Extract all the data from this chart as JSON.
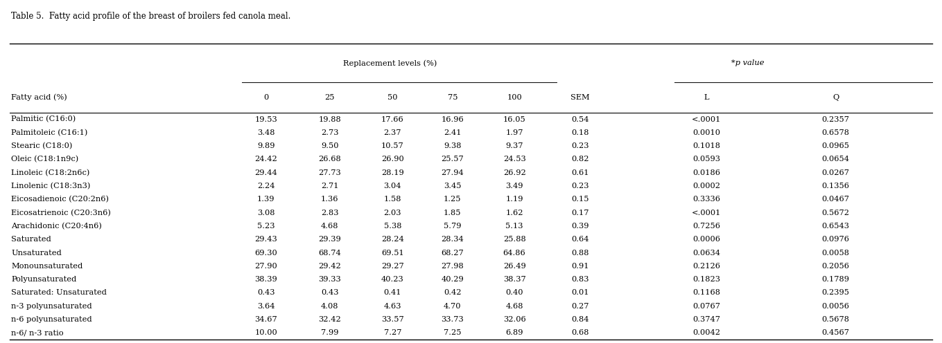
{
  "title": "Table 5.  Fatty acid profile of the breast of broilers fed canola meal.",
  "col_header_row1_repl": "Replacement levels (%)",
  "col_header_row1_pval": "*p value",
  "col_header_row1_sem": "SEM",
  "col_header_row1_fa": "Fatty acid (%)",
  "col_header_row2": [
    "0",
    "25",
    "50",
    "75",
    "100",
    "SEM",
    "L",
    "Q"
  ],
  "rows": [
    [
      "Palmitic (C16:0)",
      "19.53",
      "19.88",
      "17.66",
      "16.96",
      "16.05",
      "0.54",
      "<.0001",
      "0.2357"
    ],
    [
      "Palmitoleic (C16:1)",
      "3.48",
      "2.73",
      "2.37",
      "2.41",
      "1.97",
      "0.18",
      "0.0010",
      "0.6578"
    ],
    [
      "Stearic (C18:0)",
      "9.89",
      "9.50",
      "10.57",
      "9.38",
      "9.37",
      "0.23",
      "0.1018",
      "0.0965"
    ],
    [
      "Oleic (C18:1n9c)",
      "24.42",
      "26.68",
      "26.90",
      "25.57",
      "24.53",
      "0.82",
      "0.0593",
      "0.0654"
    ],
    [
      "Linoleic (C18:2n6c)",
      "29.44",
      "27.73",
      "28.19",
      "27.94",
      "26.92",
      "0.61",
      "0.0186",
      "0.0267"
    ],
    [
      "Linolenic (C18:3n3)",
      "2.24",
      "2.71",
      "3.04",
      "3.45",
      "3.49",
      "0.23",
      "0.0002",
      "0.1356"
    ],
    [
      "Eicosadienoic (C20:2n6)",
      "1.39",
      "1.36",
      "1.58",
      "1.25",
      "1.19",
      "0.15",
      "0.3336",
      "0.0467"
    ],
    [
      "Eicosatrienoic (C20:3n6)",
      "3.08",
      "2.83",
      "2.03",
      "1.85",
      "1.62",
      "0.17",
      "<.0001",
      "0.5672"
    ],
    [
      "Arachidonic (C20:4n6)",
      "5.23",
      "4.68",
      "5.38",
      "5.79",
      "5.13",
      "0.39",
      "0.7256",
      "0.6543"
    ],
    [
      "Saturated",
      "29.43",
      "29.39",
      "28.24",
      "28.34",
      "25.88",
      "0.64",
      "0.0006",
      "0.0976"
    ],
    [
      "Unsaturated",
      "69.30",
      "68.74",
      "69.51",
      "68.27",
      "64.86",
      "0.88",
      "0.0634",
      "0.0058"
    ],
    [
      "Monounsaturated",
      "27.90",
      "29.42",
      "29.27",
      "27.98",
      "26.49",
      "0.91",
      "0.2126",
      "0.2056"
    ],
    [
      "Polyunsaturated",
      "38.39",
      "39.33",
      "40.23",
      "40.29",
      "38.37",
      "0.83",
      "0.1823",
      "0.1789"
    ],
    [
      "Saturated: Unsaturated",
      "0.43",
      "0.43",
      "0.41",
      "0.42",
      "0.40",
      "0.01",
      "0.1168",
      "0.2395"
    ],
    [
      "n-3 polyunsaturated",
      "3.64",
      "4.08",
      "4.63",
      "4.70",
      "4.68",
      "0.27",
      "0.0767",
      "0.0056"
    ],
    [
      "n-6 polyunsaturated",
      "34.67",
      "32.42",
      "33.57",
      "33.73",
      "32.06",
      "0.84",
      "0.3747",
      "0.5678"
    ],
    [
      "n-6/ n-3 ratio",
      "10.00",
      "7.99",
      "7.27",
      "7.25",
      "6.89",
      "0.68",
      "0.0042",
      "0.4567"
    ]
  ],
  "bg_color": "#ffffff",
  "text_color": "#000000",
  "font_size": 8.2,
  "header_font_size": 8.2,
  "title_font_size": 8.5
}
